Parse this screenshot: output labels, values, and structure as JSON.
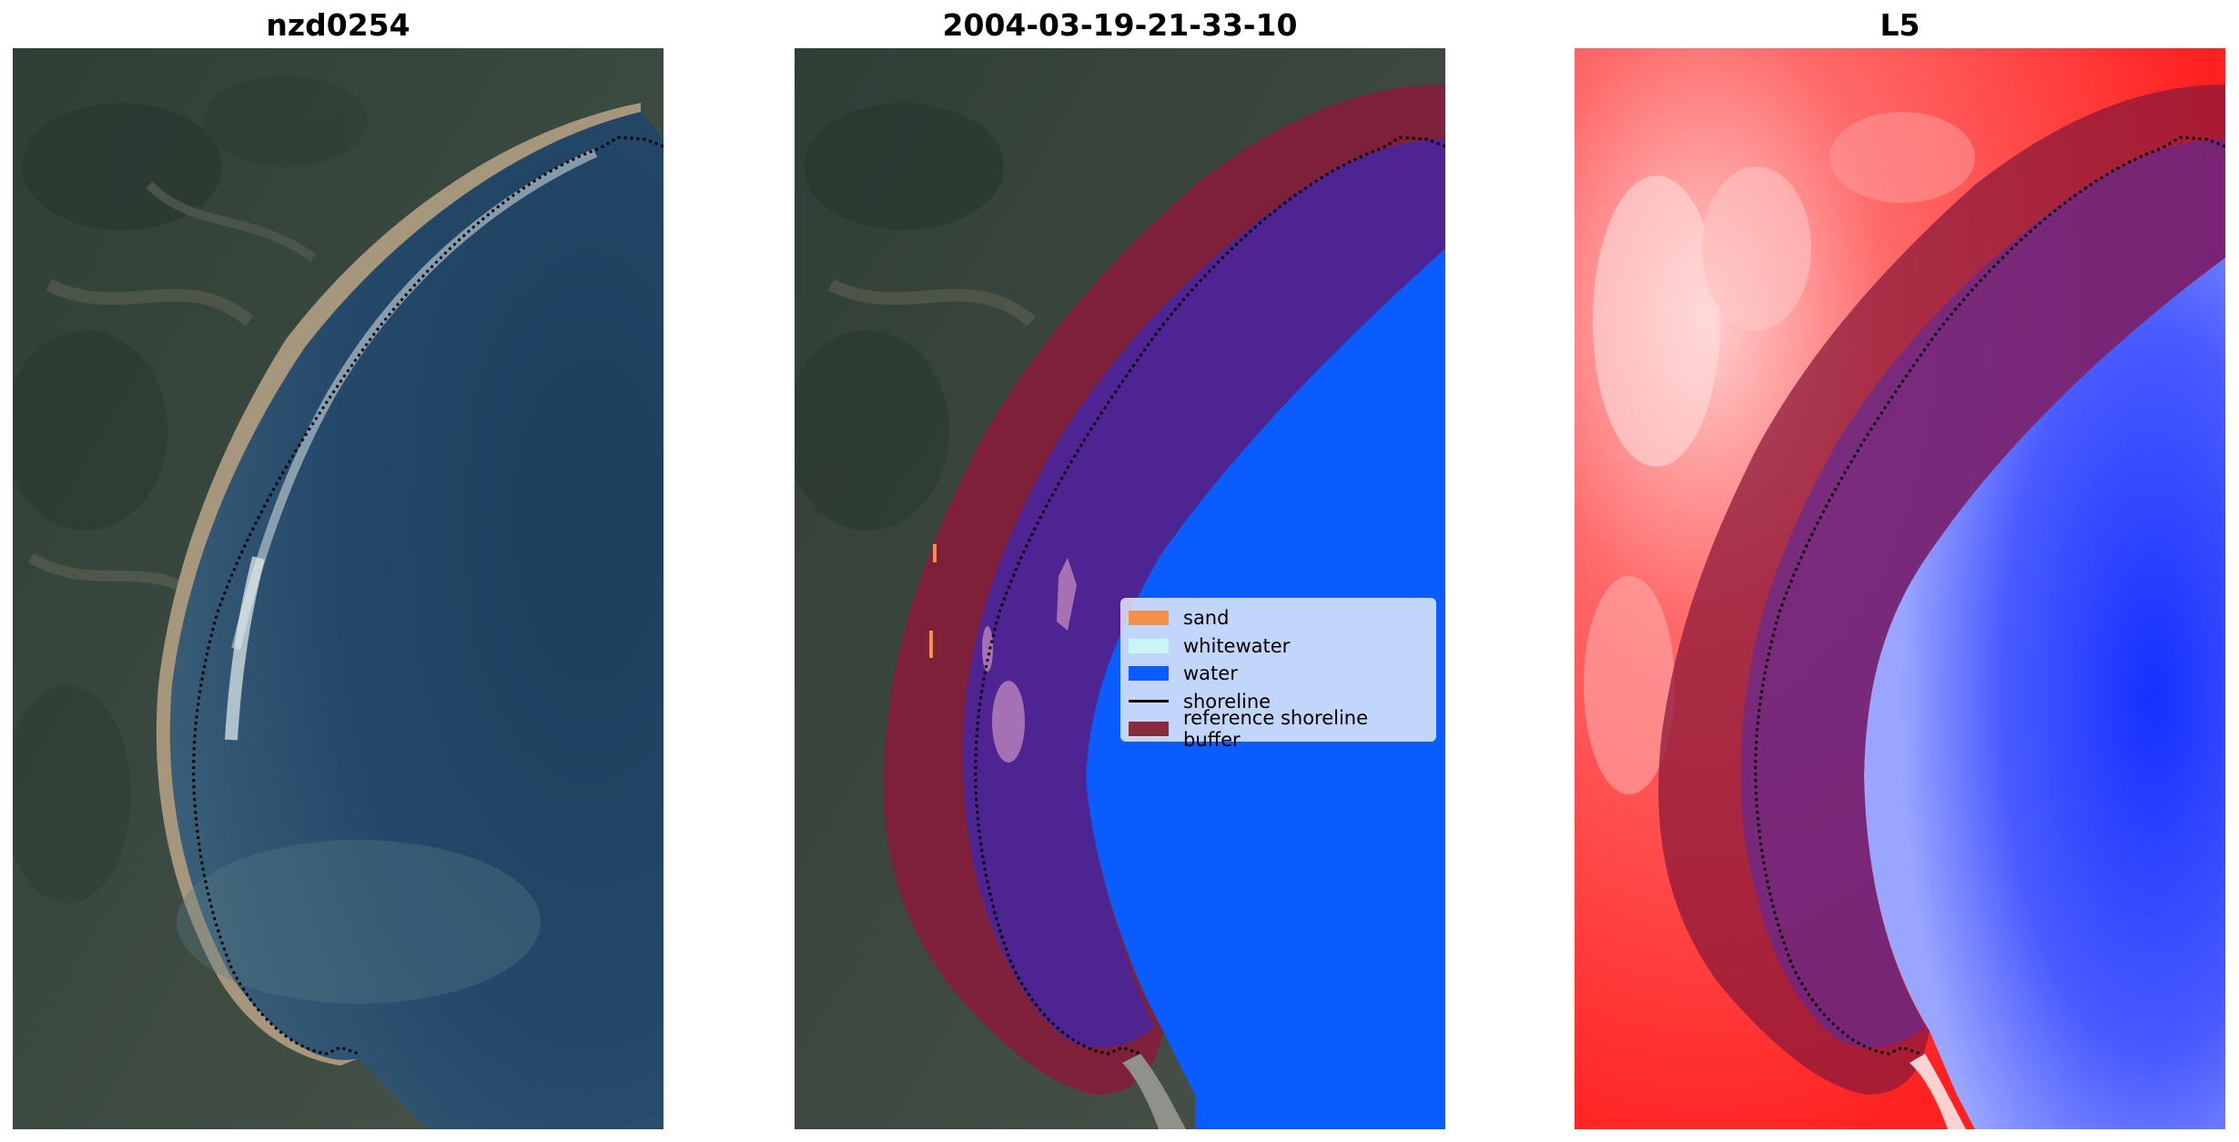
{
  "panels": {
    "rgb": {
      "title": "nzd0254"
    },
    "classified": {
      "title": "2004-03-19-21-33-10"
    },
    "index": {
      "title": "L5"
    }
  },
  "legend": {
    "items": [
      {
        "label": "sand",
        "color": "#f4904a",
        "kind": "patch"
      },
      {
        "label": "whitewater",
        "color": "#c9f6f4",
        "kind": "patch"
      },
      {
        "label": "water",
        "color": "#0a5cff",
        "kind": "patch"
      },
      {
        "label": "shoreline",
        "color": "#000000",
        "kind": "line"
      },
      {
        "label": "reference shoreline buffer",
        "color": "#8b2a3a",
        "kind": "patch"
      }
    ]
  },
  "colors": {
    "water_class": "#0a5cff",
    "buffer": "#8b1a3a",
    "land_index": "#ff2a2a",
    "water_index": "#2a3cff",
    "shoreline": "#000000"
  }
}
